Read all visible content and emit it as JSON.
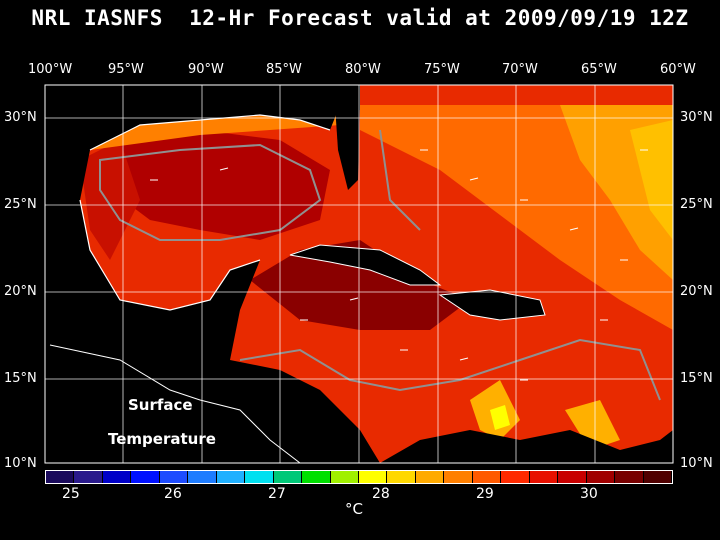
{
  "title": "NRL IASNFS  12-Hr Forecast valid at 2009/09/19 12Z",
  "lon_labels": [
    "100°W",
    "95°W",
    "90°W",
    "85°W",
    "80°W",
    "75°W",
    "70°W",
    "65°W",
    "60°W"
  ],
  "lat_labels": [
    "30°N",
    "25°N",
    "20°N",
    "15°N",
    "10°N"
  ],
  "inset_labels": [
    "Surface",
    "Temperature"
  ],
  "colorbar": {
    "ticks": [
      "25",
      "26",
      "27",
      "28",
      "29",
      "30"
    ],
    "unit": "°C",
    "colors": [
      "#1a0a5c",
      "#2a1a8c",
      "#0000c8",
      "#0010ff",
      "#1e4cff",
      "#1e7cff",
      "#1fb0ff",
      "#00e0f0",
      "#00c878",
      "#00e000",
      "#a0f000",
      "#ffff00",
      "#ffd800",
      "#ffaa00",
      "#ff7f00",
      "#ff5a00",
      "#ff2a00",
      "#e81000",
      "#c80000",
      "#a00000",
      "#780000",
      "#500000"
    ]
  }
}
